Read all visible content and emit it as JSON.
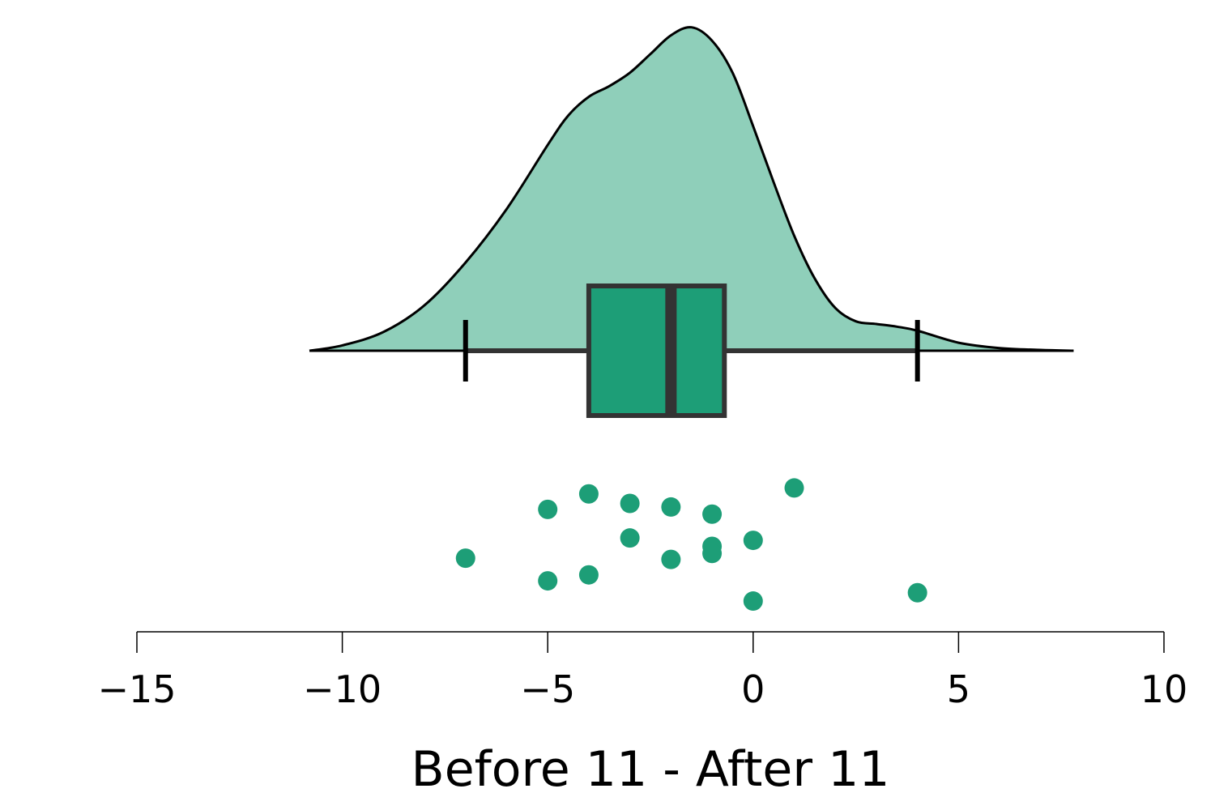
{
  "chart_data": {
    "type": "raincloud",
    "xlabel": "Before 11 - After 11",
    "xlim": [
      -15,
      10
    ],
    "xticks": [
      -15,
      -10,
      -5,
      0,
      5,
      10
    ],
    "xtick_labels": [
      "−15",
      "−10",
      "−5",
      "0",
      "5",
      "10"
    ],
    "colors": {
      "density_fill": "#8fcfba",
      "box_fill": "#1d9e77",
      "points": "#1d9e77",
      "outline": "#000000",
      "box_outline": "#333333"
    },
    "density": {
      "x": [
        -10.8,
        -10,
        -9,
        -8,
        -7,
        -6,
        -5,
        -4.5,
        -4,
        -3.5,
        -3,
        -2.5,
        -2,
        -1.5,
        -1,
        -0.5,
        0,
        0.5,
        1,
        1.5,
        2,
        2.5,
        3,
        3.5,
        4,
        5,
        6,
        7,
        7.8
      ],
      "height": [
        0,
        0.02,
        0.07,
        0.17,
        0.33,
        0.53,
        0.77,
        0.88,
        0.95,
        0.99,
        1.04,
        1.11,
        1.18,
        1.21,
        1.16,
        1.04,
        0.84,
        0.63,
        0.43,
        0.27,
        0.16,
        0.11,
        0.1,
        0.09,
        0.075,
        0.03,
        0.01,
        0.003,
        0
      ]
    },
    "boxplot": {
      "whisker_low": -7,
      "q1": -4,
      "median": -2,
      "q3": -0.7,
      "whisker_high": 4
    },
    "points": [
      {
        "x": -7,
        "jitter": 0.38
      },
      {
        "x": -5,
        "jitter": 0.79
      },
      {
        "x": -5,
        "jitter": 0.19
      },
      {
        "x": -4,
        "jitter": 0.92
      },
      {
        "x": -4,
        "jitter": 0.24
      },
      {
        "x": -3,
        "jitter": 0.84
      },
      {
        "x": -3,
        "jitter": 0.55
      },
      {
        "x": -2,
        "jitter": 0.81
      },
      {
        "x": -2,
        "jitter": 0.37
      },
      {
        "x": -1,
        "jitter": 0.75
      },
      {
        "x": -1,
        "jitter": 0.48
      },
      {
        "x": -1,
        "jitter": 0.42
      },
      {
        "x": 0,
        "jitter": 0.53
      },
      {
        "x": 0,
        "jitter": 0.02
      },
      {
        "x": 1,
        "jitter": 0.97
      },
      {
        "x": 4,
        "jitter": 0.09
      }
    ]
  }
}
